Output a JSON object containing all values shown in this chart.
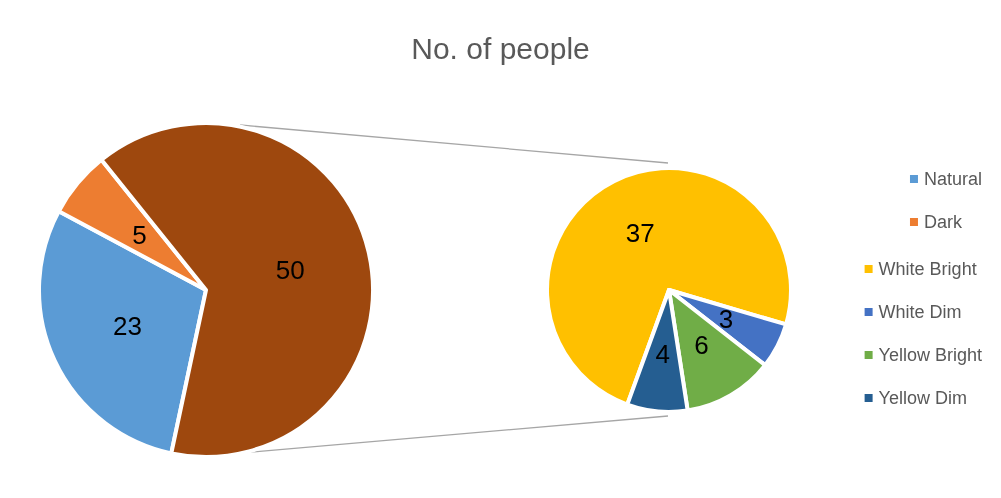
{
  "chart_data": [
    {
      "type": "pie",
      "title": "No. of people",
      "categories": [
        "Natural",
        "Dark",
        null
      ],
      "values": [
        23,
        5,
        50
      ],
      "colors": [
        "#5b9bd5",
        "#ed7d31",
        "#9e480e"
      ],
      "data_labels": true,
      "legend": "right"
    },
    {
      "type": "pie",
      "categories": [
        "White Bright",
        "White Dim",
        "Yellow Bright",
        "Yellow Dim"
      ],
      "values": [
        37,
        3,
        6,
        4
      ],
      "colors": [
        "#ffc000",
        "#4472c4",
        "#70ad47",
        "#255e91"
      ],
      "data_labels": true,
      "legend": "right"
    }
  ]
}
